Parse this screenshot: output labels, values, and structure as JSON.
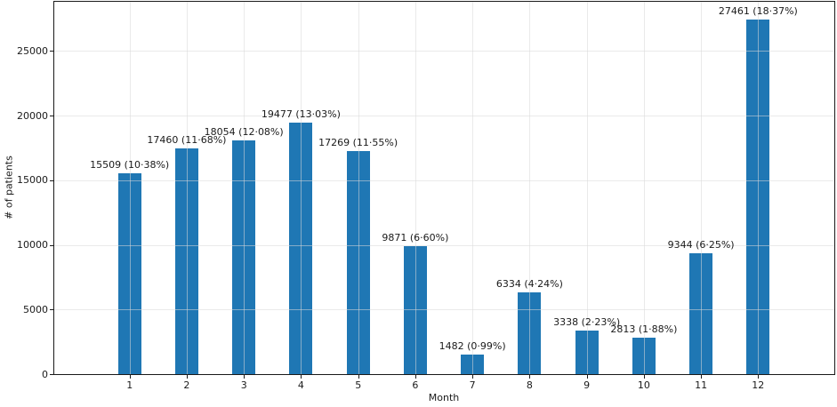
{
  "figure": {
    "background": "#ffffff",
    "spine_color": "#1a1a1a",
    "text_color": "#1a1a1a"
  },
  "chart_data": {
    "type": "bar",
    "title": "",
    "xlabel": "Month",
    "ylabel": "# of patients",
    "categories": [
      "1",
      "2",
      "3",
      "4",
      "5",
      "6",
      "7",
      "8",
      "9",
      "10",
      "11",
      "12"
    ],
    "values": [
      15509,
      17460,
      18054,
      19477,
      17269,
      9871,
      1482,
      6334,
      3338,
      2813,
      9344,
      27461
    ],
    "bar_labels": [
      "15509 (10·38%)",
      "17460 (11·68%)",
      "18054 (12·08%)",
      "19477 (13·03%)",
      "17269 (11·55%)",
      "9871 (6·60%)",
      "1482 (0·99%)",
      "6334 (4·24%)",
      "3338 (2·23%)",
      "2813 (1·88%)",
      "9344 (6·25%)",
      "27461 (18·37%)"
    ],
    "yticks": [
      0,
      5000,
      10000,
      15000,
      20000,
      25000
    ],
    "ytick_labels": [
      "0",
      "5000",
      "10000",
      "15000",
      "20000",
      "25000"
    ],
    "ylim": [
      0,
      28800
    ],
    "bar_color": "#1f77b4",
    "gridline_color": "rgba(217,217,217,0.55)",
    "grid": true,
    "grid_on_top": true,
    "legend": "none"
  }
}
